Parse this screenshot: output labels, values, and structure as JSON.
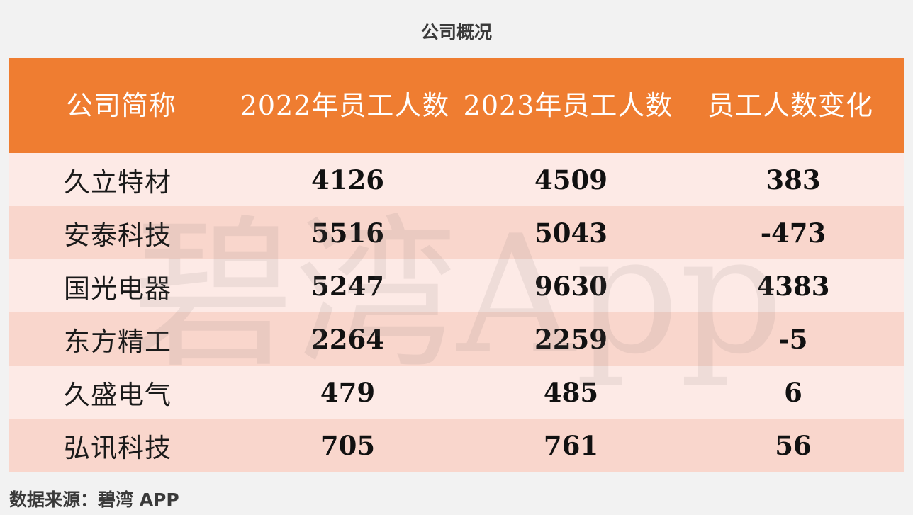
{
  "title": "公司概况",
  "source": "数据来源：碧湾 APP",
  "watermark": "碧湾App",
  "colors": {
    "header": "#ef7d31",
    "row_light": "#fdeae6",
    "row_dark": "#f9d6cc"
  },
  "chart_data": {
    "type": "table",
    "columns": [
      "公司简称",
      "2022年员工人数",
      "2023年员工人数",
      "员工人数变化"
    ],
    "rows": [
      [
        "久立特材",
        "4126",
        "4509",
        "383"
      ],
      [
        "安泰科技",
        "5516",
        "5043",
        "-473"
      ],
      [
        "国光电器",
        "5247",
        "9630",
        "4383"
      ],
      [
        "东方精工",
        "2264",
        "2259",
        "-5"
      ],
      [
        "久盛电气",
        "479",
        "485",
        "6"
      ],
      [
        "弘讯科技",
        "705",
        "761",
        "56"
      ]
    ]
  }
}
